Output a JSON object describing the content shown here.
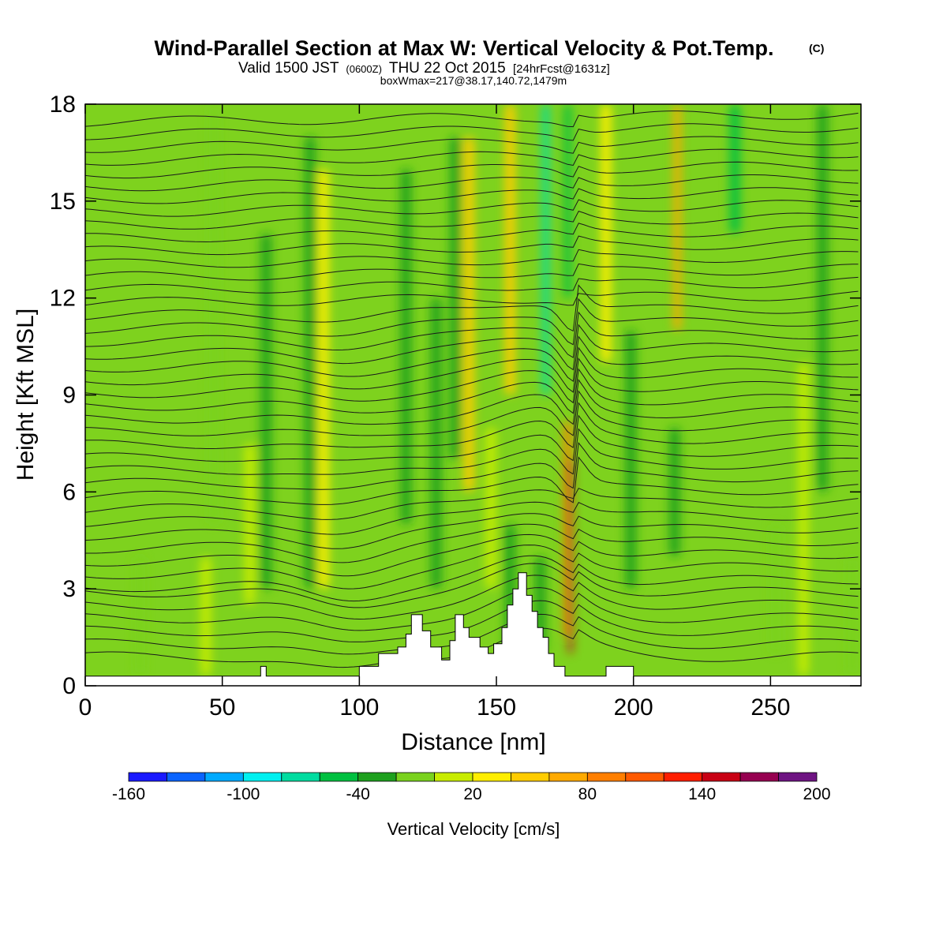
{
  "chart_data": {
    "type": "heatmap",
    "title": "Wind-Parallel Section at Max W: Vertical Velocity & Pot.Temp.",
    "title_mark": "(C)",
    "subtitle_valid": "Valid 1500 JST",
    "subtitle_utc": "(0600Z)",
    "subtitle_date": "THU 22 Oct 2015",
    "subtitle_fcst": "[24hrFcst@1631z]",
    "subtitle_box": "boxWmax=217@38.17,140.72,1479m",
    "xlabel": "Distance [nm]",
    "ylabel": "Height [Kft MSL]",
    "xlim": [
      0,
      283
    ],
    "ylim": [
      0,
      18
    ],
    "x_ticks": [
      "0",
      "50",
      "100",
      "150",
      "200",
      "250"
    ],
    "y_ticks": [
      "0",
      "3",
      "6",
      "9",
      "12",
      "15",
      "18"
    ],
    "colorbar": {
      "label": "Vertical Velocity [cm/s]",
      "tick_labels": [
        "-160",
        "-100",
        "-40",
        "20",
        "80",
        "140",
        "200"
      ],
      "colors": [
        "#1a1aff",
        "#0a64ff",
        "#00aaff",
        "#00f0f0",
        "#00dca0",
        "#00c040",
        "#1ea01e",
        "#7ad21e",
        "#c8ec00",
        "#ffee00",
        "#ffcc00",
        "#ffaa00",
        "#ff7f00",
        "#ff5a00",
        "#ff1e00",
        "#c80014",
        "#960050",
        "#6e1482"
      ]
    },
    "terrain": [
      [
        0,
        0.3
      ],
      [
        64,
        0.3
      ],
      [
        64,
        0.6
      ],
      [
        66,
        0.6
      ],
      [
        66,
        0.3
      ],
      [
        100,
        0.3
      ],
      [
        100,
        0.6
      ],
      [
        107,
        0.6
      ],
      [
        107,
        1.0
      ],
      [
        114,
        1.0
      ],
      [
        114,
        1.2
      ],
      [
        117,
        1.2
      ],
      [
        117,
        1.6
      ],
      [
        119,
        1.6
      ],
      [
        119,
        2.2
      ],
      [
        123,
        2.2
      ],
      [
        123,
        1.7
      ],
      [
        126,
        1.7
      ],
      [
        126,
        1.2
      ],
      [
        130,
        1.2
      ],
      [
        130,
        0.8
      ],
      [
        133,
        0.8
      ],
      [
        133,
        1.4
      ],
      [
        135,
        1.4
      ],
      [
        135,
        2.2
      ],
      [
        138,
        2.2
      ],
      [
        138,
        1.8
      ],
      [
        140,
        1.8
      ],
      [
        140,
        1.5
      ],
      [
        144,
        1.5
      ],
      [
        144,
        1.2
      ],
      [
        147,
        1.2
      ],
      [
        147,
        1.0
      ],
      [
        149,
        1.0
      ],
      [
        149,
        1.3
      ],
      [
        152,
        1.3
      ],
      [
        152,
        1.8
      ],
      [
        154,
        1.8
      ],
      [
        154,
        2.5
      ],
      [
        156,
        2.5
      ],
      [
        156,
        3.0
      ],
      [
        158,
        3.0
      ],
      [
        158,
        3.5
      ],
      [
        161,
        3.5
      ],
      [
        161,
        2.8
      ],
      [
        163,
        2.8
      ],
      [
        163,
        2.3
      ],
      [
        165,
        2.3
      ],
      [
        165,
        1.8
      ],
      [
        167,
        1.8
      ],
      [
        167,
        1.5
      ],
      [
        169,
        1.5
      ],
      [
        169,
        1.0
      ],
      [
        171,
        1.0
      ],
      [
        171,
        0.6
      ],
      [
        175,
        0.6
      ],
      [
        175,
        0.3
      ],
      [
        190,
        0.3
      ],
      [
        190,
        0.6
      ],
      [
        200,
        0.6
      ],
      [
        200,
        0.3
      ],
      [
        283,
        0.3
      ]
    ],
    "w_features": [
      {
        "x": 177,
        "y0": 1.0,
        "y1": 7.0,
        "value": 150
      },
      {
        "x": 176,
        "y0": 1.5,
        "y1": 8.2,
        "value": 80
      },
      {
        "x": 216,
        "y0": 11,
        "y1": 18,
        "value": 60
      },
      {
        "x": 140,
        "y0": 6,
        "y1": 17,
        "value": 50
      },
      {
        "x": 155,
        "y0": 9,
        "y1": 18,
        "value": 45
      },
      {
        "x": 87,
        "y0": 3,
        "y1": 16,
        "value": 30
      },
      {
        "x": 190,
        "y0": 10,
        "y1": 18,
        "value": 30
      },
      {
        "x": 168,
        "y0": 9,
        "y1": 18,
        "value": -70
      },
      {
        "x": 176,
        "y0": 12,
        "y1": 18,
        "value": -60
      },
      {
        "x": 237,
        "y0": 14,
        "y1": 18,
        "value": -50
      },
      {
        "x": 82,
        "y0": 3,
        "y1": 17,
        "value": -40
      },
      {
        "x": 128,
        "y0": 3,
        "y1": 12,
        "value": -40
      },
      {
        "x": 199,
        "y0": 3,
        "y1": 11,
        "value": -40
      },
      {
        "x": 215,
        "y0": 4,
        "y1": 8,
        "value": -35
      },
      {
        "x": 135,
        "y0": 7,
        "y1": 17,
        "value": -35
      },
      {
        "x": 166,
        "y0": 1,
        "y1": 4,
        "value": -35
      },
      {
        "x": 66,
        "y0": 3,
        "y1": 14,
        "value": -30
      },
      {
        "x": 117,
        "y0": 5,
        "y1": 16,
        "value": -30
      },
      {
        "x": 269,
        "y0": 6,
        "y1": 18,
        "value": -30
      },
      {
        "x": 155,
        "y0": 1,
        "y1": 5,
        "value": -25
      },
      {
        "x": 47,
        "y0": 5,
        "y1": 18,
        "value": -20
      },
      {
        "x": 252,
        "y0": 1,
        "y1": 5,
        "value": -20
      },
      {
        "x": 20,
        "y0": 0.3,
        "y1": 4,
        "value": -15
      },
      {
        "x": 280,
        "y0": 0.3,
        "y1": 4,
        "value": -15
      },
      {
        "x": 44,
        "y0": 0.3,
        "y1": 4,
        "value": 15
      },
      {
        "x": 148,
        "y0": 3,
        "y1": 8,
        "value": 15
      },
      {
        "x": 262,
        "y0": 0.3,
        "y1": 10,
        "value": 15
      },
      {
        "x": 60,
        "y0": 2.5,
        "y1": 7.5,
        "value": 10
      }
    ],
    "theta_levels": [
      0.9,
      1.3,
      1.7,
      2.1,
      2.5,
      2.9,
      3.3,
      3.7,
      4.1,
      4.5,
      4.9,
      5.3,
      5.7,
      6.1,
      6.5,
      6.9,
      7.3,
      7.7,
      8.1,
      8.5,
      8.9,
      9.3,
      9.7,
      10.1,
      10.5,
      10.9,
      11.3,
      11.7,
      12.1,
      12.5,
      12.9,
      13.3,
      13.7,
      14.1,
      14.5,
      14.9,
      15.3,
      15.7,
      16.1,
      16.5,
      16.9,
      17.3,
      17.7
    ]
  }
}
